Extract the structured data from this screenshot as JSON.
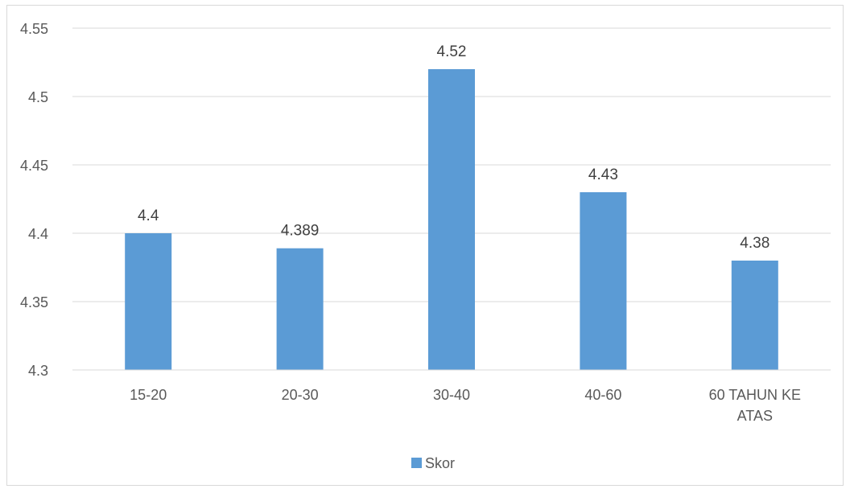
{
  "chart_data": {
    "type": "bar",
    "categories": [
      [
        "15-20"
      ],
      [
        "20-30"
      ],
      [
        "30-40"
      ],
      [
        "40-60"
      ],
      [
        "60 TAHUN KE",
        "ATAS"
      ]
    ],
    "series": [
      {
        "name": "Skor",
        "values": [
          4.4,
          4.389,
          4.52,
          4.43,
          4.38
        ],
        "color": "#5b9bd5"
      }
    ],
    "data_labels": [
      "4.4",
      "4.389",
      "4.52",
      "4.43",
      "4.38"
    ],
    "y_ticks": [
      "4.3",
      "4.35",
      "4.4",
      "4.45",
      "4.5",
      "4.55"
    ],
    "ylim": [
      4.3,
      4.55
    ],
    "grid": true,
    "gridline_color": "#d9d9d9",
    "legend": {
      "position": "bottom",
      "entries": [
        "Skor"
      ]
    },
    "title": "",
    "xlabel": "",
    "ylabel": ""
  }
}
